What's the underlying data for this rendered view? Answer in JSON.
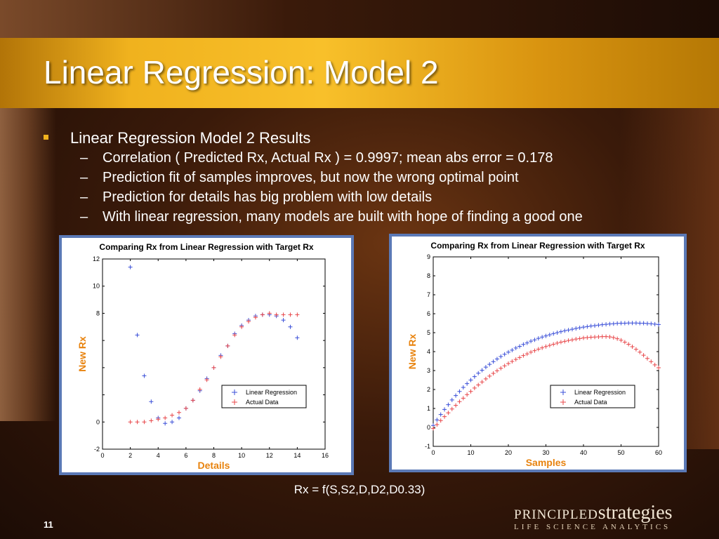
{
  "slide": {
    "title": "Linear Regression: Model 2",
    "bullet": "Linear Regression Model 2 Results",
    "subbullets": [
      "Correlation ( Predicted Rx, Actual Rx ) = 0.9997; mean abs error = 0.178",
      "Prediction fit of samples improves, but now the wrong optimal point",
      "Prediction for details has big problem with low details",
      "With linear regression, many models are built with hope of finding a good one"
    ],
    "dash": "–",
    "formula": "Rx = f(S,S2,D,D2,D0.33)",
    "page_number": "11",
    "logo_part1": "PRINCIPLED",
    "logo_part2": "strategies",
    "logo_sub": "LIFE SCIENCE ANALYTICS",
    "colors": {
      "title_band": "#f0b21e",
      "panel_border": "#5b79b6",
      "axis_label": "#e8830e"
    }
  },
  "chart_data": [
    {
      "type": "scatter",
      "title": "Comparing Rx from Linear Regression with Target Rx",
      "xlabel": "Details",
      "ylabel": "New Rx",
      "xlim": [
        0,
        16
      ],
      "ylim": [
        -2,
        12
      ],
      "xticks": [
        0,
        2,
        4,
        6,
        8,
        10,
        12,
        14,
        16
      ],
      "yticks": [
        -2,
        0,
        2,
        4,
        6,
        8,
        10,
        12
      ],
      "ytick_labels": [
        "-2",
        "0",
        "",
        "",
        "",
        "8",
        "10",
        "12"
      ],
      "legend": "center-right",
      "grid": false,
      "series": [
        {
          "name": "Linear Regression",
          "color": "#3a4fd8",
          "marker": "+",
          "x": [
            2,
            2.5,
            3,
            3.5,
            4,
            4.5,
            5,
            5.5,
            6,
            6.5,
            7,
            7.5,
            8,
            8.5,
            9,
            9.5,
            10,
            10.5,
            11,
            11.5,
            12,
            12.5,
            13,
            13.5,
            14
          ],
          "y": [
            11.4,
            6.4,
            3.4,
            1.5,
            0.3,
            -0.1,
            0,
            0.3,
            1,
            1.6,
            2.3,
            3.2,
            4,
            4.9,
            5.6,
            6.5,
            7.1,
            7.5,
            7.8,
            7.9,
            7.9,
            7.8,
            7.5,
            7,
            6.2
          ]
        },
        {
          "name": "Actual Data",
          "color": "#e8474a",
          "marker": "+",
          "x": [
            2,
            2.5,
            3,
            3.5,
            4,
            4.5,
            5,
            5.5,
            6,
            6.5,
            7,
            7.5,
            8,
            8.5,
            9,
            9.5,
            10,
            10.5,
            11,
            11.5,
            12,
            12.5,
            13,
            13.5,
            14
          ],
          "y": [
            0,
            0,
            0,
            0.1,
            0.2,
            0.3,
            0.5,
            0.7,
            1,
            1.6,
            2.4,
            3.1,
            4,
            4.8,
            5.6,
            6.4,
            7,
            7.4,
            7.7,
            7.9,
            8,
            7.9,
            7.9,
            7.9,
            7.9
          ]
        }
      ]
    },
    {
      "type": "scatter",
      "title": "Comparing Rx from Linear Regression with Target Rx",
      "xlabel": "Samples",
      "ylabel": "New Rx",
      "xlim": [
        0,
        60
      ],
      "ylim": [
        -1,
        9
      ],
      "xticks": [
        0,
        10,
        20,
        30,
        40,
        50,
        60
      ],
      "yticks": [
        -1,
        0,
        1,
        2,
        3,
        4,
        5,
        6,
        7,
        8,
        9
      ],
      "ytick_labels": [
        "-1",
        "0",
        "1",
        "2",
        "3",
        "4",
        "5",
        "6",
        "7",
        "8",
        "9"
      ],
      "legend": "center-right",
      "grid": false,
      "series": [
        {
          "name": "Linear Regression",
          "color": "#3a4fd8",
          "marker": "+",
          "x": [
            0,
            1,
            2,
            3,
            4,
            5,
            6,
            7,
            8,
            9,
            10,
            11,
            12,
            13,
            14,
            15,
            16,
            17,
            18,
            19,
            20,
            21,
            22,
            23,
            24,
            25,
            26,
            27,
            28,
            29,
            30,
            31,
            32,
            33,
            34,
            35,
            36,
            37,
            38,
            39,
            40,
            41,
            42,
            43,
            44,
            45,
            46,
            47,
            48,
            49,
            50,
            51,
            52,
            53,
            54,
            55,
            56,
            57,
            58,
            59,
            60
          ],
          "y": [
            0.1,
            0.4,
            0.68,
            0.95,
            1.2,
            1.45,
            1.68,
            1.9,
            2.11,
            2.31,
            2.5,
            2.68,
            2.86,
            3.02,
            3.18,
            3.33,
            3.47,
            3.61,
            3.74,
            3.86,
            3.97,
            4.08,
            4.19,
            4.28,
            4.38,
            4.46,
            4.55,
            4.62,
            4.7,
            4.77,
            4.83,
            4.89,
            4.95,
            5,
            5.05,
            5.1,
            5.14,
            5.18,
            5.22,
            5.26,
            5.29,
            5.32,
            5.35,
            5.37,
            5.4,
            5.42,
            5.44,
            5.46,
            5.47,
            5.49,
            5.5,
            5.5,
            5.51,
            5.51,
            5.51,
            5.5,
            5.5,
            5.48,
            5.47,
            5.45,
            5.43
          ]
        },
        {
          "name": "Actual Data",
          "color": "#e8474a",
          "marker": "+",
          "x": [
            0,
            1,
            2,
            3,
            4,
            5,
            6,
            7,
            8,
            9,
            10,
            11,
            12,
            13,
            14,
            15,
            16,
            17,
            18,
            19,
            20,
            21,
            22,
            23,
            24,
            25,
            26,
            27,
            28,
            29,
            30,
            31,
            32,
            33,
            34,
            35,
            36,
            37,
            38,
            39,
            40,
            41,
            42,
            43,
            44,
            45,
            46,
            47,
            48,
            49,
            50,
            51,
            52,
            53,
            54,
            55,
            56,
            57,
            58,
            59,
            60
          ],
          "y": [
            -0.05,
            0.15,
            0.36,
            0.57,
            0.77,
            0.97,
            1.16,
            1.36,
            1.54,
            1.73,
            1.9,
            2.08,
            2.24,
            2.4,
            2.56,
            2.71,
            2.85,
            2.99,
            3.12,
            3.25,
            3.37,
            3.48,
            3.59,
            3.69,
            3.79,
            3.88,
            3.97,
            4.05,
            4.13,
            4.2,
            4.27,
            4.33,
            4.39,
            4.45,
            4.5,
            4.54,
            4.59,
            4.62,
            4.66,
            4.69,
            4.72,
            4.74,
            4.76,
            4.77,
            4.78,
            4.79,
            4.79,
            4.78,
            4.74,
            4.68,
            4.6,
            4.5,
            4.39,
            4.26,
            4.12,
            3.97,
            3.81,
            3.64,
            3.47,
            3.3,
            3.15
          ]
        }
      ]
    }
  ]
}
